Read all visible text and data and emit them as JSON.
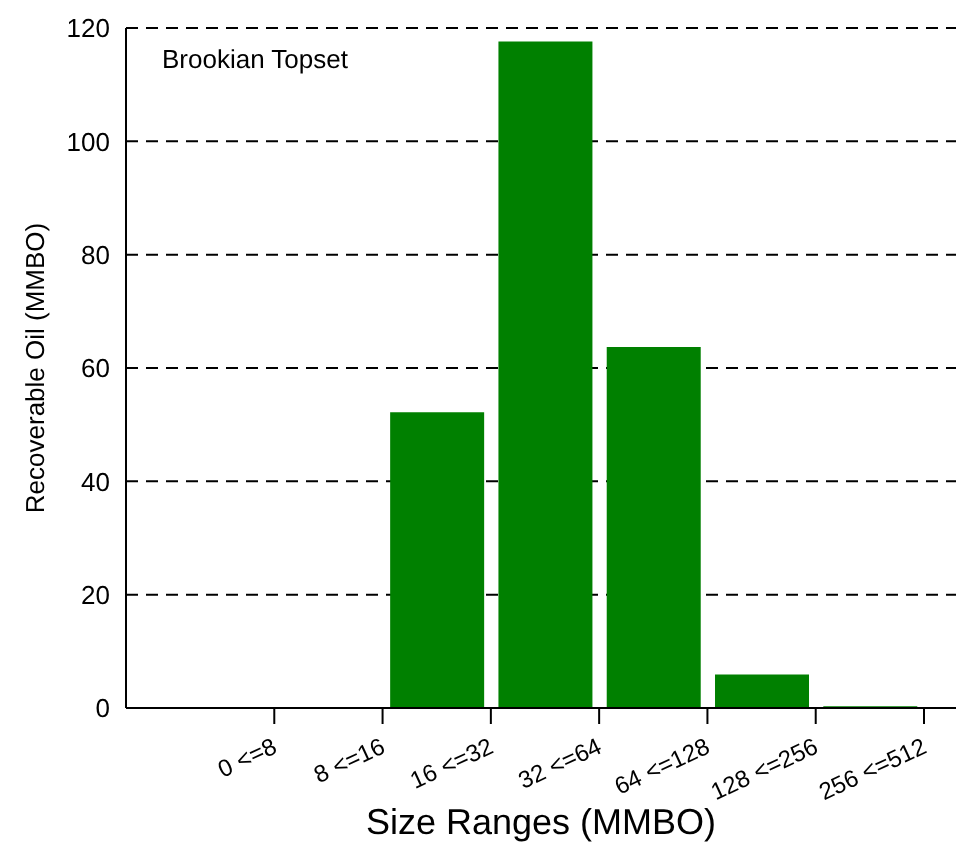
{
  "chart_data": {
    "type": "bar",
    "title": "Brookian Topset",
    "xlabel": "Size Ranges (MMBO)",
    "ylabel": "Recoverable Oil (MMBO)",
    "categories": [
      "0 <=8",
      "8 <=16",
      "16 <=32",
      "32 <=64",
      "64 <=128",
      "128 <=256",
      "256 <=512"
    ],
    "values": [
      0,
      0,
      52.2,
      117.6,
      63.7,
      5.9,
      0.3
    ],
    "color": "#008000",
    "ylim": [
      0,
      120
    ],
    "yticks": [
      0,
      20,
      40,
      60,
      80,
      100,
      120
    ],
    "grid": "y",
    "legend": false
  }
}
